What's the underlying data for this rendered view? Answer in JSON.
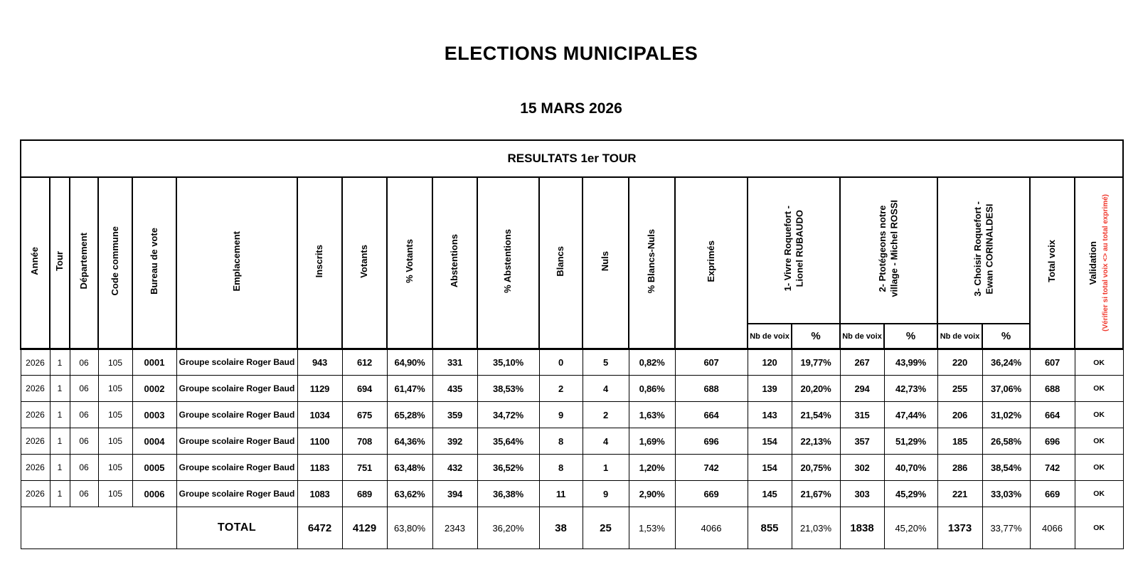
{
  "page": {
    "title": "ELECTIONS MUNICIPALES",
    "subtitle": "15 MARS 2026"
  },
  "colors": {
    "validation_note_red": "#f0392e"
  },
  "table": {
    "title": "RESULTATS 1er TOUR",
    "headers": {
      "annee": "Année",
      "tour": "Tour",
      "departement": "Département",
      "code_commune": "Code commune",
      "bureau_de_vote": "Bureau de vote",
      "emplacement": "Emplacement",
      "inscrits": "Inscrits",
      "votants": "Votants",
      "pct_votants": "% Votants",
      "abstentions": "Abstentions",
      "pct_abstentions": "% Abstentions",
      "blancs": "Blancs",
      "nuls": "Nuls",
      "pct_blancs_nuls": "% Blancs-Nuls",
      "exprimes": "Exprimés",
      "total_voix": "Total voix",
      "validation": "Validation",
      "validation_note": "(Vérifier si total voix <> au total exprimé)",
      "nb_de_voix": "Nb de voix",
      "pct": "%"
    },
    "candidates": [
      {
        "name": "1- Vivre Roquefort -\nLionel RUBAUDO"
      },
      {
        "name": "2- Ptotégeons notre\nvillage - Michel ROSSI"
      },
      {
        "name": "3- Choisir Roquefort -\nEwan CORINALDESI"
      }
    ],
    "rows": [
      {
        "annee": "2026",
        "tour": "1",
        "departement": "06",
        "code_commune": "105",
        "bureau_de_vote": "0001",
        "emplacement": "Groupe scolaire Roger Baud",
        "inscrits": "943",
        "votants": "612",
        "pct_votants": "64,90%",
        "abstentions": "331",
        "pct_abstentions": "35,10%",
        "blancs": "0",
        "nuls": "5",
        "pct_blancs_nuls": "0,82%",
        "exprimes": "607",
        "c1_voix": "120",
        "c1_pct": "19,77%",
        "c2_voix": "267",
        "c2_pct": "43,99%",
        "c3_voix": "220",
        "c3_pct": "36,24%",
        "total_voix": "607",
        "validation": "OK"
      },
      {
        "annee": "2026",
        "tour": "1",
        "departement": "06",
        "code_commune": "105",
        "bureau_de_vote": "0002",
        "emplacement": "Groupe scolaire Roger Baud",
        "inscrits": "1129",
        "votants": "694",
        "pct_votants": "61,47%",
        "abstentions": "435",
        "pct_abstentions": "38,53%",
        "blancs": "2",
        "nuls": "4",
        "pct_blancs_nuls": "0,86%",
        "exprimes": "688",
        "c1_voix": "139",
        "c1_pct": "20,20%",
        "c2_voix": "294",
        "c2_pct": "42,73%",
        "c3_voix": "255",
        "c3_pct": "37,06%",
        "total_voix": "688",
        "validation": "OK"
      },
      {
        "annee": "2026",
        "tour": "1",
        "departement": "06",
        "code_commune": "105",
        "bureau_de_vote": "0003",
        "emplacement": "Groupe scolaire Roger Baud",
        "inscrits": "1034",
        "votants": "675",
        "pct_votants": "65,28%",
        "abstentions": "359",
        "pct_abstentions": "34,72%",
        "blancs": "9",
        "nuls": "2",
        "pct_blancs_nuls": "1,63%",
        "exprimes": "664",
        "c1_voix": "143",
        "c1_pct": "21,54%",
        "c2_voix": "315",
        "c2_pct": "47,44%",
        "c3_voix": "206",
        "c3_pct": "31,02%",
        "total_voix": "664",
        "validation": "OK"
      },
      {
        "annee": "2026",
        "tour": "1",
        "departement": "06",
        "code_commune": "105",
        "bureau_de_vote": "0004",
        "emplacement": "Groupe scolaire Roger Baud",
        "inscrits": "1100",
        "votants": "708",
        "pct_votants": "64,36%",
        "abstentions": "392",
        "pct_abstentions": "35,64%",
        "blancs": "8",
        "nuls": "4",
        "pct_blancs_nuls": "1,69%",
        "exprimes": "696",
        "c1_voix": "154",
        "c1_pct": "22,13%",
        "c2_voix": "357",
        "c2_pct": "51,29%",
        "c3_voix": "185",
        "c3_pct": "26,58%",
        "total_voix": "696",
        "validation": "OK"
      },
      {
        "annee": "2026",
        "tour": "1",
        "departement": "06",
        "code_commune": "105",
        "bureau_de_vote": "0005",
        "emplacement": "Groupe scolaire Roger Baud",
        "inscrits": "1183",
        "votants": "751",
        "pct_votants": "63,48%",
        "abstentions": "432",
        "pct_abstentions": "36,52%",
        "blancs": "8",
        "nuls": "1",
        "pct_blancs_nuls": "1,20%",
        "exprimes": "742",
        "c1_voix": "154",
        "c1_pct": "20,75%",
        "c2_voix": "302",
        "c2_pct": "40,70%",
        "c3_voix": "286",
        "c3_pct": "38,54%",
        "total_voix": "742",
        "validation": "OK"
      },
      {
        "annee": "2026",
        "tour": "1",
        "departement": "06",
        "code_commune": "105",
        "bureau_de_vote": "0006",
        "emplacement": "Groupe scolaire Roger Baud",
        "inscrits": "1083",
        "votants": "689",
        "pct_votants": "63,62%",
        "abstentions": "394",
        "pct_abstentions": "36,38%",
        "blancs": "11",
        "nuls": "9",
        "pct_blancs_nuls": "2,90%",
        "exprimes": "669",
        "c1_voix": "145",
        "c1_pct": "21,67%",
        "c2_voix": "303",
        "c2_pct": "45,29%",
        "c3_voix": "221",
        "c3_pct": "33,03%",
        "total_voix": "669",
        "validation": "OK"
      }
    ],
    "total": {
      "label": "TOTAL",
      "inscrits": "6472",
      "votants": "4129",
      "pct_votants": "63,80%",
      "abstentions": "2343",
      "pct_abstentions": "36,20%",
      "blancs": "38",
      "nuls": "25",
      "pct_blancs_nuls": "1,53%",
      "exprimes": "4066",
      "c1_voix": "855",
      "c1_pct": "21,03%",
      "c2_voix": "1838",
      "c2_pct": "45,20%",
      "c3_voix": "1373",
      "c3_pct": "33,77%",
      "total_voix": "4066",
      "validation": "OK"
    }
  }
}
